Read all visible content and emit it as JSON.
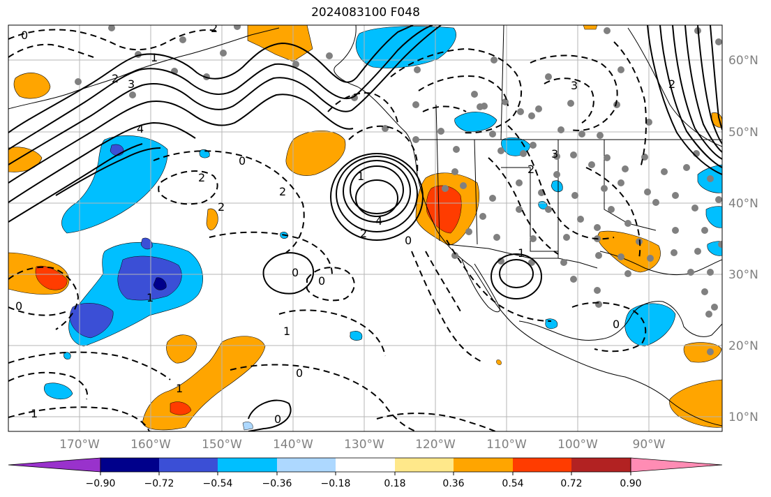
{
  "title": "2024083100 F048",
  "latitude_labels": [
    "60°N",
    "50°N",
    "40°N",
    "30°N",
    "20°N",
    "10°N"
  ],
  "longitude_labels": [
    "170°W",
    "160°W",
    "150°W",
    "140°W",
    "130°W",
    "120°W",
    "110°W",
    "100°W",
    "90°W"
  ],
  "colorbar": {
    "tick_labels": [
      "−0.90",
      "−0.72",
      "−0.54",
      "−0.36",
      "−0.18",
      "0.18",
      "0.36",
      "0.54",
      "0.72",
      "0.90"
    ],
    "colors": [
      "#9932cc",
      "#00008b",
      "#3b4fd6",
      "#00bfff",
      "#add8ff",
      "#ffffff",
      "#ffe88a",
      "#ffa500",
      "#ff3c00",
      "#b22222",
      "#ff8cb4"
    ]
  },
  "contour_labels": [
    {
      "text": "0"
    },
    {
      "text": "2"
    },
    {
      "text": "1"
    },
    {
      "text": "3"
    },
    {
      "text": "4"
    },
    {
      "text": "2"
    },
    {
      "text": "0"
    },
    {
      "text": "2"
    },
    {
      "text": "2"
    },
    {
      "text": "2"
    },
    {
      "text": "1"
    },
    {
      "text": "4"
    },
    {
      "text": "2"
    },
    {
      "text": "0"
    },
    {
      "text": "0"
    },
    {
      "text": "1"
    },
    {
      "text": "0"
    },
    {
      "text": "1"
    },
    {
      "text": "0"
    },
    {
      "text": "0"
    },
    {
      "text": "1"
    },
    {
      "text": "0"
    },
    {
      "text": "1"
    },
    {
      "text": "3"
    },
    {
      "text": "3"
    },
    {
      "text": "2"
    },
    {
      "text": "0"
    },
    {
      "text": "1"
    },
    {
      "text": "2"
    }
  ]
}
